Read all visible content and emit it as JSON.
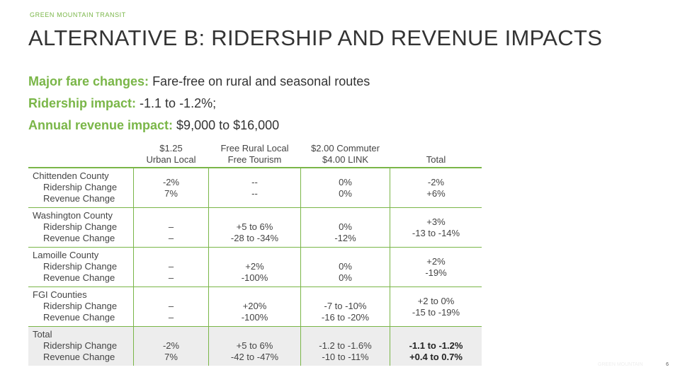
{
  "brand": "GREEN MOUNTAIN TRANSIT",
  "title": "ALTERNATIVE B:  RIDERSHIP AND REVENUE IMPACTS",
  "summary": {
    "fare_label": "Major fare changes:",
    "fare_value": " Fare-free on rural and seasonal routes",
    "ridership_label": "Ridership impact:",
    "ridership_value": " -1.1 to -1.2%;",
    "revenue_label": "Annual revenue impact:",
    "revenue_value": "  $9,000 to $16,000"
  },
  "table": {
    "headers": [
      {
        "l1": "$1.25",
        "l2": "Urban Local"
      },
      {
        "l1": "Free Rural Local",
        "l2": "Free Tourism"
      },
      {
        "l1": "$2.00 Commuter",
        "l2": "$4.00 LINK"
      },
      {
        "l1": "",
        "l2": "Total"
      }
    ],
    "rows": [
      {
        "name": "Chittenden County",
        "sub1": "Ridership Change",
        "sub2": "Revenue Change",
        "cells": [
          [
            "-2%",
            "7%"
          ],
          [
            "--",
            "--"
          ],
          [
            "0%",
            "0%"
          ],
          [
            "-2%",
            "+6%"
          ]
        ]
      },
      {
        "name": "Washington County",
        "sub1": "Ridership Change",
        "sub2": "Revenue Change",
        "cells": [
          [
            "–",
            "–"
          ],
          [
            "+5 to 6%",
            "-28 to -34%"
          ],
          [
            "0%",
            "-12%"
          ],
          [
            "+3%",
            "-13 to -14%"
          ]
        ]
      },
      {
        "name": "Lamoille County",
        "sub1": "Ridership Change",
        "sub2": "Revenue Change",
        "cells": [
          [
            "–",
            "–"
          ],
          [
            "+2%",
            "-100%"
          ],
          [
            "0%",
            "0%"
          ],
          [
            "+2%",
            "-19%"
          ]
        ]
      },
      {
        "name": "FGI Counties",
        "sub1": "Ridership Change",
        "sub2": "Revenue Change",
        "cells": [
          [
            "–",
            "–"
          ],
          [
            "+20%",
            "-100%"
          ],
          [
            "-7 to -10%",
            "-16 to -20%"
          ],
          [
            "+2 to 0%",
            "-15 to -19%"
          ]
        ]
      },
      {
        "name": "Total",
        "sub1": "Ridership Change",
        "sub2": "Revenue Change",
        "cells": [
          [
            "-2%",
            "7%"
          ],
          [
            "+5 to 6%",
            "-42 to -47%"
          ],
          [
            "-1.2 to -1.6%",
            "-10 to -11%"
          ],
          [
            "-1.1 to -1.2%",
            "+0.4 to 0.7%"
          ]
        ]
      }
    ]
  },
  "page_number": "6",
  "footer_faint": "GREEN MOUNTAIN"
}
